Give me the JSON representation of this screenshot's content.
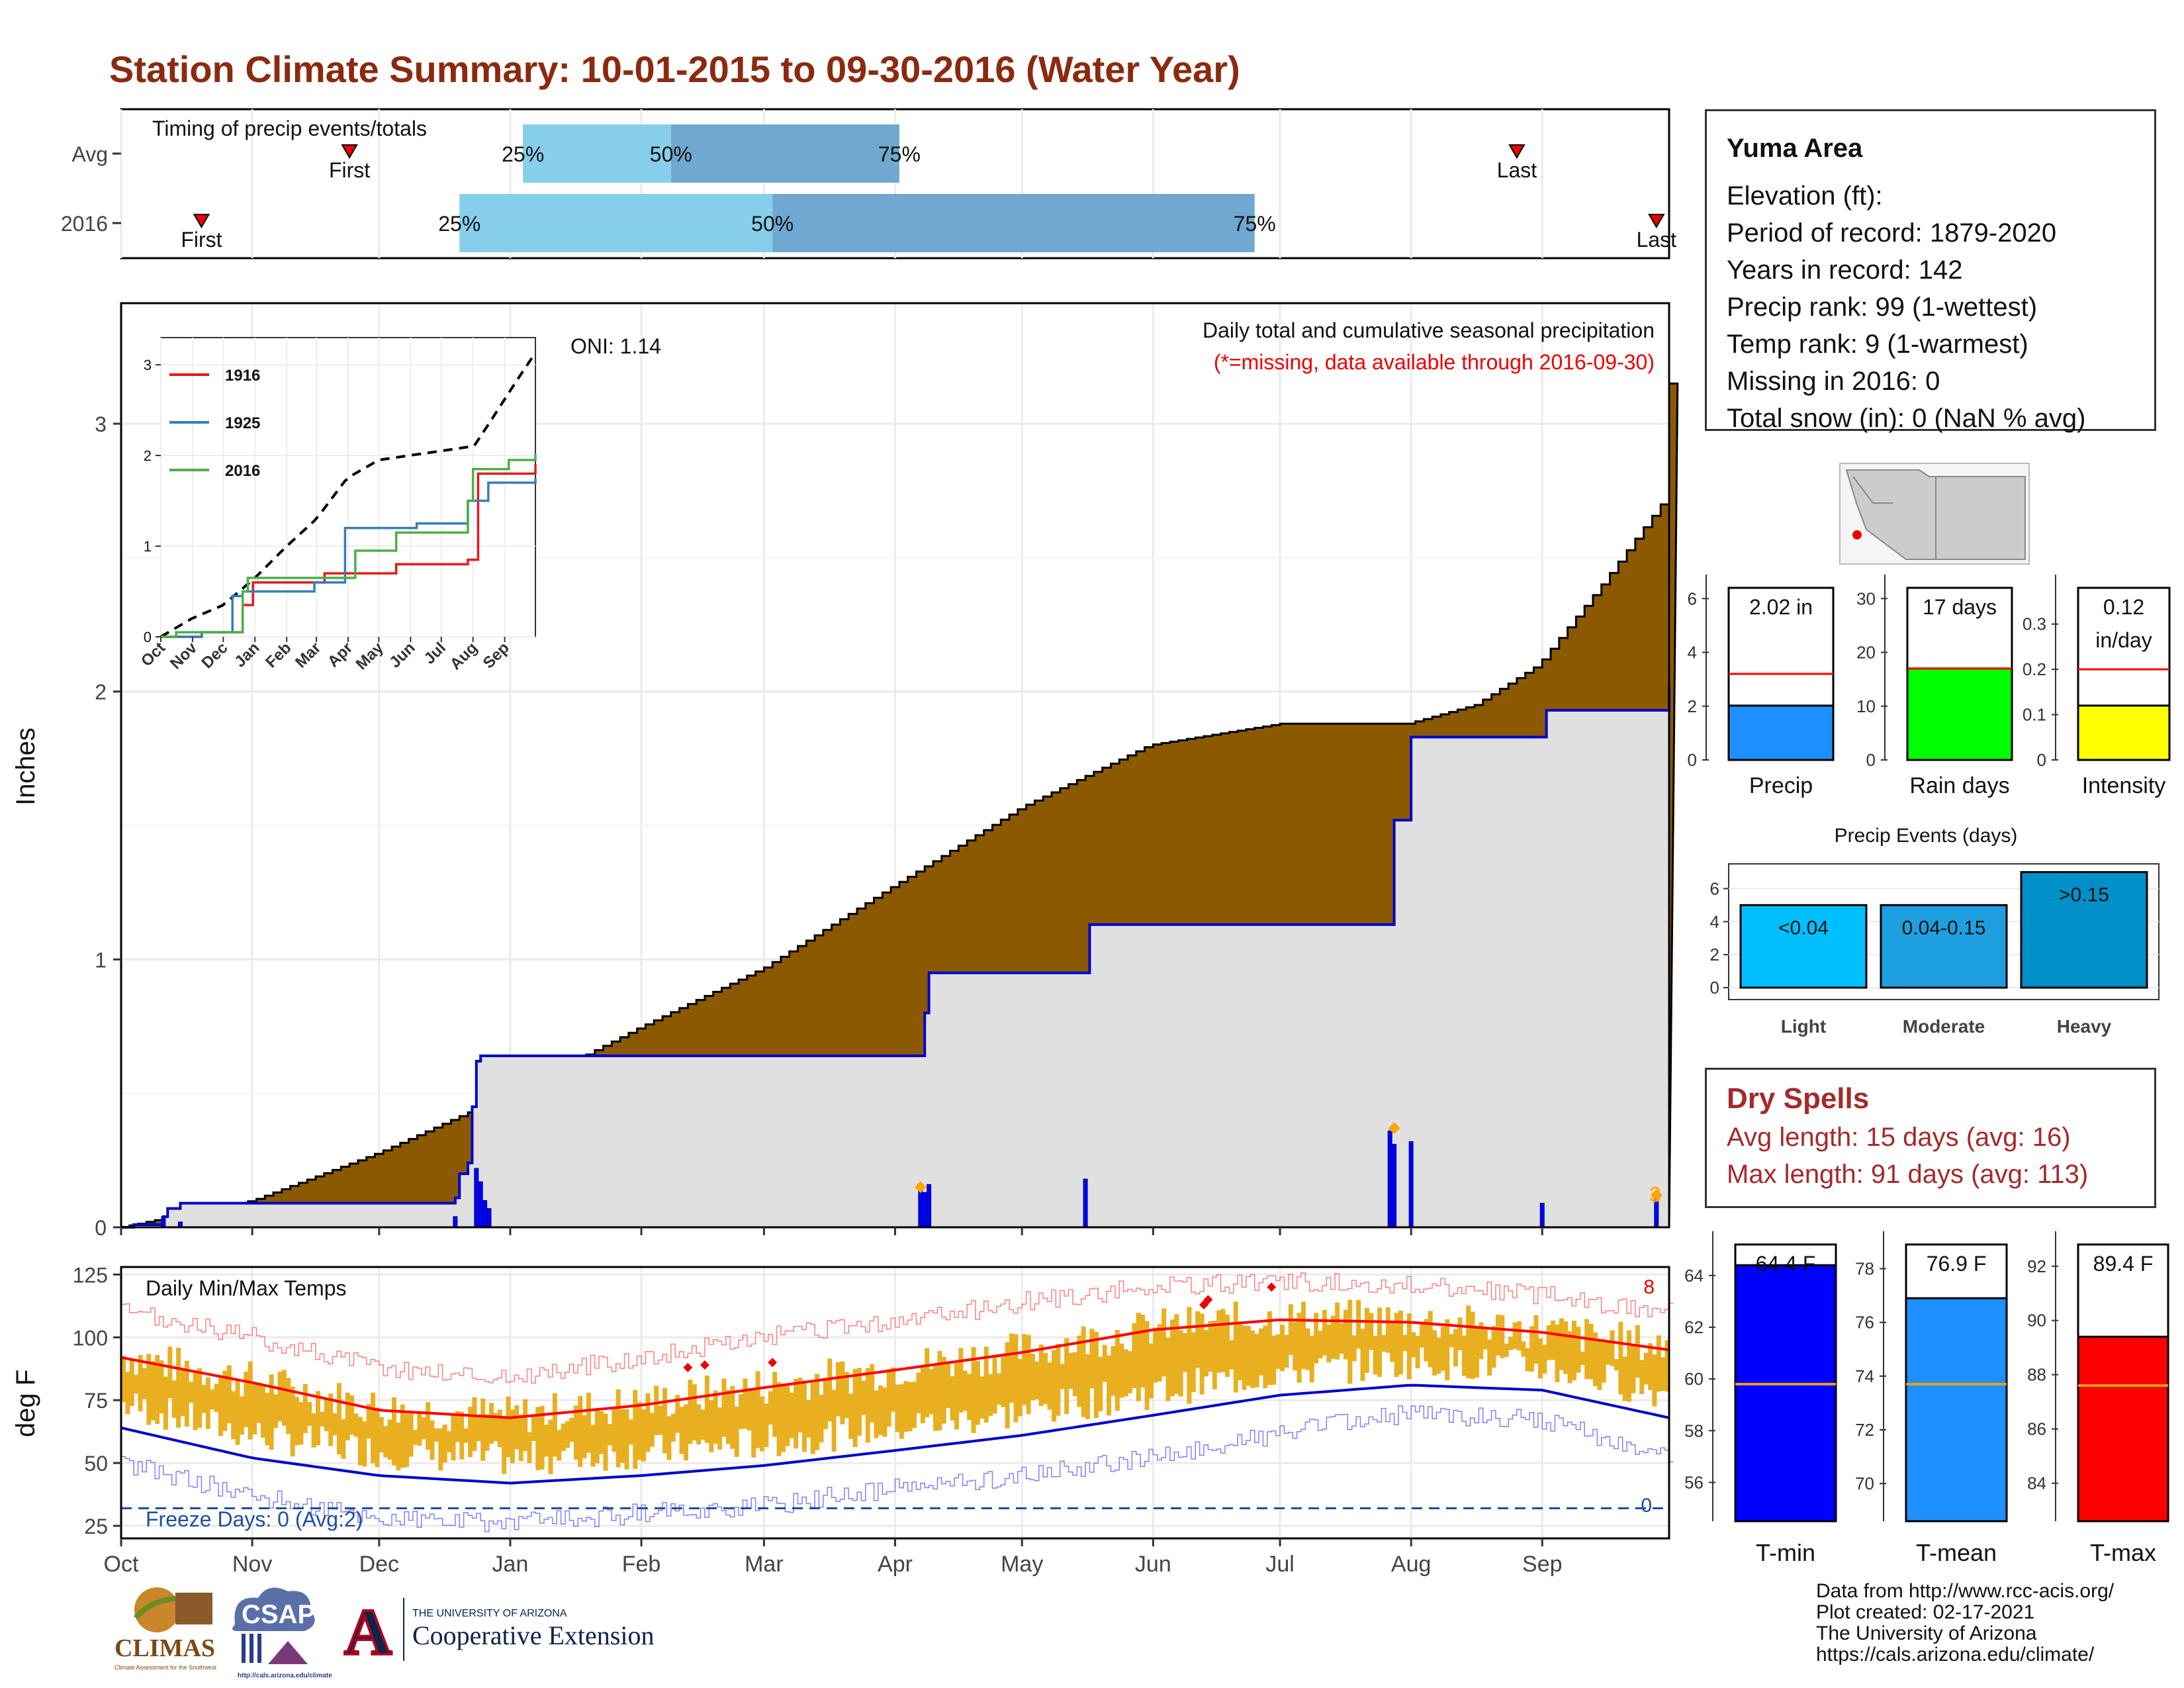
{
  "title": "Station Climate Summary: 10-01-2015 to 09-30-2016 (Water Year)",
  "info": {
    "name": "Yuma Area",
    "lines": [
      "Elevation (ft):",
      "Period of record: 1879-2020",
      "Years in record: 142",
      "Precip rank: 99 (1-wettest)",
      "Temp rank: 9 (1-warmest)",
      "Missing in 2016: 0",
      "Total snow (in): 0 (NaN % avg)"
    ]
  },
  "dry_spells": {
    "title": "Dry Spells",
    "avg": "Avg length: 15 days (avg: 16)",
    "max": "Max length: 91 days (avg: 113)"
  },
  "credits": [
    "Data from http://www.rcc-acis.org/",
    "Plot created: 02-17-2021",
    "The University of Arizona",
    "https://cals.arizona.edu/climate/"
  ],
  "logos": {
    "climas": "CLIMAS",
    "climas_sub": "Climate Assessment for the Southwest",
    "csap": "CSAP",
    "csap_url": "http://cals.arizona.edu/climate",
    "ua_top": "THE UNIVERSITY OF ARIZONA",
    "ua_bottom": "Cooperative Extension",
    "ua_letter": "A"
  },
  "colors": {
    "cumulative": "#8b5a00",
    "normal_fill": "#e0e0e0",
    "normal_line": "#0000cd",
    "daily_bars": "#0000ff",
    "missing": "#ff0000",
    "temp_bars": "#e8b020",
    "tmax_avg": "#ff0000",
    "tmin_avg": "#0000cd",
    "light_blue": "#87ceeb",
    "mid_blue": "#6fa8d0",
    "title_red": "#8b2a0f"
  },
  "chart_data": [
    {
      "id": "timing",
      "type": "range",
      "title": "Timing of precip events/totals",
      "rows": [
        {
          "label": "Avg",
          "first": "Nov 24",
          "p25": "Jan 04",
          "p50": "Feb 08",
          "p75": "Apr 02",
          "last": "Aug 26",
          "first_label": "First",
          "last_label": "Last",
          "p25_label": "25%",
          "p50_label": "50%",
          "p75_label": "75%"
        },
        {
          "label": "2016",
          "first": "Oct 20",
          "p25": "Dec 20",
          "p50": "Mar 03",
          "p75": "Jun 25",
          "last": "Sep 28",
          "first_label": "First",
          "last_label": "Last",
          "p25_label": "25%",
          "p50_label": "50%",
          "p75_label": "75%"
        }
      ],
      "x_ticks": [
        "Oct",
        "Nov",
        "Dec",
        "Jan",
        "Feb",
        "Mar",
        "Apr",
        "May",
        "Jun",
        "Jul",
        "Aug",
        "Sep"
      ]
    },
    {
      "id": "precip",
      "type": "area",
      "title": "Daily total and cumulative seasonal precipitation",
      "subtitle": "(*=missing, data available through 2016-09-30)",
      "annotation": "ONI: 1.14",
      "ylabel": "Inches",
      "ylim": [
        0,
        3.45
      ],
      "y_ticks": [
        "0",
        "1",
        "2",
        "3"
      ],
      "x_ticks": [
        "Oct",
        "Nov",
        "Dec",
        "Jan",
        "Feb",
        "Mar",
        "Apr",
        "May",
        "Jun",
        "Jul",
        "Aug",
        "Sep"
      ],
      "cumulative_normal": [
        [
          0,
          0
        ],
        [
          15,
          0.05
        ],
        [
          31,
          0.1
        ],
        [
          61,
          0.28
        ],
        [
          92,
          0.5
        ],
        [
          123,
          0.75
        ],
        [
          152,
          0.97
        ],
        [
          182,
          1.27
        ],
        [
          213,
          1.57
        ],
        [
          243,
          1.8
        ],
        [
          274,
          1.88
        ],
        [
          304,
          1.88
        ],
        [
          320,
          1.95
        ],
        [
          335,
          2.1
        ],
        [
          350,
          2.4
        ],
        [
          365,
          2.72
        ],
        [
          366,
          3.15
        ]
      ],
      "cumulative_2016": [
        [
          0,
          0
        ],
        [
          3,
          0.01
        ],
        [
          10,
          0.04
        ],
        [
          11,
          0.07
        ],
        [
          14,
          0.09
        ],
        [
          79,
          0.11
        ],
        [
          80,
          0.2
        ],
        [
          82,
          0.24
        ],
        [
          83,
          0.45
        ],
        [
          84,
          0.62
        ],
        [
          85,
          0.64
        ],
        [
          189,
          0.64
        ],
        [
          190,
          0.8
        ],
        [
          191,
          0.95
        ],
        [
          228,
          0.95
        ],
        [
          229,
          1.13
        ],
        [
          300,
          1.13
        ],
        [
          301,
          1.52
        ],
        [
          305,
          1.83
        ],
        [
          336,
          1.83
        ],
        [
          337,
          1.93
        ],
        [
          366,
          2.02
        ]
      ],
      "daily_precip": [
        [
          10,
          0.04
        ],
        [
          14,
          0.02
        ],
        [
          79,
          0.04
        ],
        [
          84,
          0.22
        ],
        [
          85,
          0.17
        ],
        [
          86,
          0.1
        ],
        [
          87,
          0.07
        ],
        [
          189,
          0.15
        ],
        [
          190,
          0.13
        ],
        [
          191,
          0.16
        ],
        [
          228,
          0.18
        ],
        [
          300,
          0.36
        ],
        [
          301,
          0.31
        ],
        [
          305,
          0.32
        ],
        [
          336,
          0.09
        ],
        [
          363,
          0.11
        ]
      ],
      "markers": [
        {
          "day": 189,
          "value": 0.15
        },
        {
          "day": 301,
          "value": 0.37
        },
        {
          "day": 363,
          "value": 0.12
        }
      ],
      "marker_label": "3"
    },
    {
      "id": "inset",
      "type": "line",
      "series": [
        {
          "name": "1916",
          "color": "#e41a1c",
          "values": [
            [
              0,
              0
            ],
            [
              40,
              0.05
            ],
            [
              80,
              0.35
            ],
            [
              90,
              0.6
            ],
            [
              160,
              0.7
            ],
            [
              230,
              0.8
            ],
            [
              300,
              0.85
            ],
            [
              310,
              1.8
            ],
            [
              366,
              1.9
            ]
          ]
        },
        {
          "name": "1925",
          "color": "#377eb8",
          "values": [
            [
              0,
              0
            ],
            [
              40,
              0.05
            ],
            [
              70,
              0.45
            ],
            [
              80,
              0.5
            ],
            [
              150,
              0.6
            ],
            [
              180,
              1.2
            ],
            [
              250,
              1.25
            ],
            [
              300,
              1.5
            ],
            [
              320,
              1.7
            ],
            [
              366,
              1.75
            ]
          ]
        },
        {
          "name": "2016",
          "color": "#4daf4a",
          "values": [
            [
              0,
              0
            ],
            [
              15,
              0.05
            ],
            [
              80,
              0.5
            ],
            [
              85,
              0.65
            ],
            [
              190,
              0.95
            ],
            [
              230,
              1.15
            ],
            [
              300,
              1.5
            ],
            [
              305,
              1.85
            ],
            [
              340,
              1.95
            ],
            [
              366,
              2.02
            ]
          ]
        }
      ],
      "normal": [
        [
          0,
          0
        ],
        [
          30,
          0.2
        ],
        [
          61,
          0.35
        ],
        [
          92,
          0.65
        ],
        [
          123,
          1.0
        ],
        [
          152,
          1.3
        ],
        [
          182,
          1.75
        ],
        [
          213,
          1.95
        ],
        [
          243,
          2.0
        ],
        [
          274,
          2.05
        ],
        [
          304,
          2.1
        ],
        [
          335,
          2.6
        ],
        [
          366,
          3.1
        ]
      ],
      "y_ticks": [
        "0",
        "1",
        "2",
        "3"
      ],
      "x_ticks": [
        "Oct",
        "Nov",
        "Dec",
        "Jan",
        "Feb",
        "Mar",
        "Apr",
        "May",
        "Jun",
        "Jul",
        "Aug",
        "Sep"
      ]
    },
    {
      "id": "temps",
      "type": "bar",
      "title": "Daily Min/Max Temps",
      "ylabel": "deg F",
      "ylim": [
        20,
        128
      ],
      "y_ticks": [
        "25",
        "50",
        "75",
        "100",
        "125"
      ],
      "x_ticks": [
        "Oct",
        "Nov",
        "Dec",
        "Jan",
        "Feb",
        "Mar",
        "Apr",
        "May",
        "Jun",
        "Jul",
        "Aug",
        "Sep"
      ],
      "freeze_label": "Freeze Days: 0 (Avg:2)",
      "freeze_line": 32,
      "freeze_count": "0",
      "record_count": "8",
      "avg_tmax_monthly": [
        92,
        82,
        71,
        68,
        73,
        80,
        87,
        94,
        103,
        107,
        106,
        102,
        95
      ],
      "avg_tmin_monthly": [
        64,
        52,
        45,
        42,
        45,
        49,
        55,
        61,
        69,
        77,
        81,
        79,
        68
      ],
      "record_tmax_monthly": [
        110,
        100,
        88,
        84,
        92,
        100,
        106,
        114,
        120,
        122,
        121,
        117,
        110
      ],
      "record_tmin_monthly": [
        50,
        37,
        28,
        26,
        30,
        33,
        40,
        45,
        52,
        62,
        70,
        67,
        52
      ],
      "records": [
        [
          134,
          88
        ],
        [
          138,
          89
        ],
        [
          154,
          90
        ],
        [
          256,
          113
        ],
        [
          257,
          115
        ],
        [
          272,
          120
        ]
      ]
    },
    {
      "id": "summary_bars",
      "type": "bar",
      "panels": [
        {
          "name": "Precip",
          "value": 2.02,
          "label": "2.02 in",
          "avg": 3.2,
          "ylim": [
            0,
            6.4
          ],
          "ticks": [
            0,
            2,
            4,
            6
          ],
          "color": "#1e90ff"
        },
        {
          "name": "Rain days",
          "value": 17,
          "label": "17 days",
          "avg": 17,
          "ylim": [
            0,
            32
          ],
          "ticks": [
            0,
            10,
            20,
            30
          ],
          "color": "#00ff00"
        },
        {
          "name": "Intensity",
          "value": 0.12,
          "label": "0.12\nin/day",
          "avg": 0.2,
          "ylim": [
            0,
            0.38
          ],
          "ticks": [
            0.0,
            0.1,
            0.2,
            0.3
          ],
          "color": "#ffff00"
        }
      ]
    },
    {
      "id": "precip_events",
      "type": "bar",
      "title": "Precip Events (days)",
      "categories": [
        "Light",
        "Moderate",
        "Heavy"
      ],
      "values": [
        5,
        5,
        7
      ],
      "labels": [
        "<0.04",
        "0.04-0.15",
        ">0.15"
      ],
      "colors": [
        "#00bfff",
        "#1ea0e0",
        "#0090c8"
      ],
      "ylim": [
        0,
        7.5
      ],
      "ticks": [
        0,
        2,
        4,
        6
      ]
    },
    {
      "id": "temp_summary",
      "type": "bar",
      "panels": [
        {
          "name": "T-min",
          "value": 64.4,
          "label": "64.4 F",
          "avg": 59.8,
          "ylim": [
            54.5,
            65.2
          ],
          "ticks": [
            56,
            58,
            60,
            62,
            64
          ],
          "color": "#0000ff"
        },
        {
          "name": "T-mean",
          "value": 76.9,
          "label": "76.9 F",
          "avg": 73.7,
          "ylim": [
            68.6,
            78.9
          ],
          "ticks": [
            70,
            72,
            74,
            76,
            78
          ],
          "color": "#1e90ff"
        },
        {
          "name": "T-max",
          "value": 89.4,
          "label": "89.4 F",
          "avg": 87.6,
          "ylim": [
            82.6,
            92.8
          ],
          "ticks": [
            84,
            86,
            88,
            90,
            92
          ],
          "color": "#ff0000"
        }
      ]
    }
  ]
}
